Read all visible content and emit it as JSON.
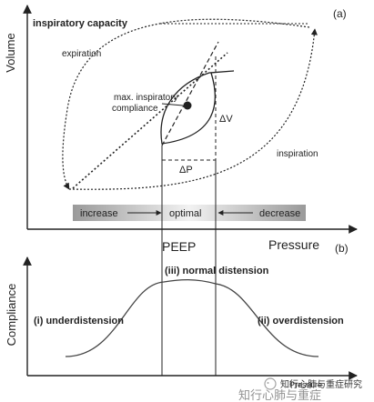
{
  "panel_a": {
    "panel_label": "(a)",
    "y_axis_label": "Volume",
    "x_axis_label": "Pressure",
    "label_inspiratory_capacity": "inspiratory capacity",
    "label_expiration": "expiration",
    "label_inspiration": "inspiration",
    "label_compliance_line1": "max. inspiratory",
    "label_compliance_line2": "compliance",
    "label_delta_v": "ΔV",
    "label_delta_p": "ΔP",
    "band_increase": "increase",
    "band_optimal": "optimal",
    "band_decrease": "decrease"
  },
  "peep_label": "PEEP",
  "panel_b": {
    "panel_label": "(b)",
    "y_axis_label": "Compliance",
    "x_axis_label": "Pressure",
    "label_normal": "(iii) normal distension",
    "label_under": "(i) underdistension",
    "label_over": "(ii) overdistension"
  },
  "watermark": {
    "line1": "知行心肺与重症研究",
    "line2": "知行心肺与重症"
  },
  "colors": {
    "ink": "#222222",
    "band": "#c8c8c8",
    "watermark": "#b9a36a"
  }
}
